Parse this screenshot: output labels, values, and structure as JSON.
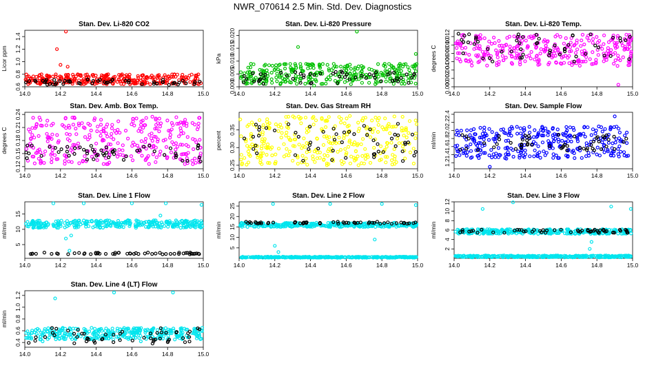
{
  "figure_title": "NWR_070614  2.5 Min. Std. Dev. Diagnostics",
  "chart_data": [
    {
      "type": "scatter",
      "title": "Stan. Dev. Li-820 CO2",
      "ylabel": "Licor ppm",
      "xlim": [
        14.0,
        15.0
      ],
      "ylim": [
        0.6,
        1.5
      ],
      "xticks": [
        "14.0",
        "14.2",
        "14.4",
        "14.6",
        "14.8",
        "15.0"
      ],
      "yticks": [
        "0.6",
        "0.8",
        "1.0",
        "1.2",
        "1.4"
      ],
      "series": [
        {
          "color": "#ff0000",
          "band": [
            0.64,
            0.8
          ],
          "outliers": [
            [
              14.23,
              1.48
            ],
            [
              14.18,
              1.2
            ],
            [
              14.24,
              0.92
            ],
            [
              14.2,
              0.95
            ]
          ]
        },
        {
          "color": "#000000",
          "band": [
            0.63,
            0.72
          ],
          "outliers": []
        }
      ]
    },
    {
      "type": "scatter",
      "title": "Stan. Dev. Li-820 Pressure",
      "ylabel": "kPa",
      "xlim": [
        14.0,
        15.0
      ],
      "ylim": [
        0.0,
        0.022
      ],
      "xticks": [
        "14.0",
        "14.2",
        "14.4",
        "14.6",
        "14.8",
        "15.0"
      ],
      "yticks": [
        "0.000",
        "0.005",
        "0.010",
        "0.015",
        "0.020"
      ],
      "series": [
        {
          "color": "#00c000",
          "band": [
            0.001,
            0.009
          ],
          "outliers": [
            [
              14.66,
              0.0215
            ],
            [
              14.33,
              0.0155
            ],
            [
              14.99,
              0.0128
            ],
            [
              14.42,
              0.0005
            ]
          ]
        },
        {
          "color": "#000000",
          "band": [
            0.001,
            0.006
          ],
          "outliers": []
        }
      ]
    },
    {
      "type": "scatter",
      "title": "Stan. Dev. Li-820 Temp.",
      "ylabel": "degrees C",
      "xlim": [
        14.0,
        15.0
      ],
      "ylim": [
        0.0,
        0.0135
      ],
      "xticks": [
        "14.0",
        "14.2",
        "14.4",
        "14.6",
        "14.8",
        "15.0"
      ],
      "yticks": [
        "0.000",
        "0.002",
        "0.004",
        "0.006",
        "0.008",
        "0.010",
        "0.012"
      ],
      "series": [
        {
          "color": "#ff00ff",
          "band": [
            0.005,
            0.0125
          ],
          "outliers": [
            [
              14.92,
              0.0005
            ]
          ]
        },
        {
          "color": "#000000",
          "band": [
            0.006,
            0.0128
          ],
          "outliers": []
        }
      ]
    },
    {
      "type": "scatter",
      "title": "Stan. Dev. Amb. Box Temp.",
      "ylabel": "degrees C",
      "xlim": [
        14.0,
        15.0
      ],
      "ylim": [
        0.115,
        0.245
      ],
      "xticks": [
        "14.0",
        "14.2",
        "14.4",
        "14.6",
        "14.8",
        "15.0"
      ],
      "yticks": [
        "0.12",
        "0.15",
        "0.18",
        "0.21",
        "0.24"
      ],
      "series": [
        {
          "color": "#ff00ff",
          "band": [
            0.125,
            0.235
          ],
          "outliers": []
        },
        {
          "color": "#000000",
          "band": [
            0.13,
            0.17
          ],
          "outliers": []
        }
      ]
    },
    {
      "type": "scatter",
      "title": "Stan. Dev. Gas Stream RH",
      "ylabel": "percent",
      "xlim": [
        14.0,
        15.0
      ],
      "ylim": [
        0.24,
        0.4
      ],
      "xticks": [
        "14.0",
        "14.2",
        "14.4",
        "14.6",
        "14.8",
        "15.0"
      ],
      "yticks": [
        "0.25",
        "0.30",
        "0.35"
      ],
      "series": [
        {
          "color": "#ffff00",
          "band": [
            0.25,
            0.39
          ],
          "outliers": []
        },
        {
          "color": "#000000",
          "band": [
            0.26,
            0.37
          ],
          "outliers": []
        }
      ]
    },
    {
      "type": "scatter",
      "title": "Stan. Dev. Sample Flow",
      "ylabel": "ml/min",
      "xlim": [
        14.0,
        15.0
      ],
      "ylim": [
        1.05,
        2.45
      ],
      "xticks": [
        "14.0",
        "14.2",
        "14.4",
        "14.6",
        "14.8",
        "15.0"
      ],
      "yticks": [
        "1.2",
        "1.4",
        "1.6",
        "1.8",
        "2.0",
        "2.2",
        "2.4"
      ],
      "series": [
        {
          "color": "#0000ff",
          "band": [
            1.3,
            2.1
          ],
          "outliers": [
            [
              14.2,
              1.1
            ],
            [
              14.9,
              2.35
            ]
          ]
        },
        {
          "color": "#000000",
          "band": [
            1.5,
            1.9
          ],
          "outliers": []
        }
      ]
    },
    {
      "type": "scatter",
      "title": "Stan. Dev. Line 1 Flow",
      "ylabel": "ml/min",
      "xlim": [
        14.0,
        15.0
      ],
      "ylim": [
        0.5,
        19
      ],
      "xticks": [
        "14.0",
        "14.2",
        "14.4",
        "14.6",
        "14.8",
        "15.0"
      ],
      "yticks": [
        "5",
        "10",
        "15"
      ],
      "series": [
        {
          "color": "#00e5ee",
          "band": [
            10.5,
            13
          ],
          "outliers": [
            [
              14.16,
              18.5
            ],
            [
              14.33,
              18.5
            ],
            [
              14.76,
              14.5
            ],
            [
              14.79,
              18.5
            ],
            [
              14.99,
              18
            ],
            [
              14.23,
              7
            ],
            [
              14.26,
              8
            ],
            [
              14.25,
              3
            ],
            [
              14.6,
              18.5
            ]
          ]
        },
        {
          "color": "#000000",
          "band": [
            1.8,
            2.4
          ],
          "outliers": []
        }
      ]
    },
    {
      "type": "scatter",
      "title": "Stan. Dev. Line 2 Flow",
      "ylabel": "ml/min",
      "xlim": [
        14.0,
        15.0
      ],
      "ylim": [
        0.0,
        27
      ],
      "xticks": [
        "14.0",
        "14.2",
        "14.4",
        "14.6",
        "14.8",
        "15.0"
      ],
      "yticks": [
        "5",
        "10",
        "15",
        "20",
        "25"
      ],
      "series": [
        {
          "color": "#00e5ee",
          "band": [
            15,
            17
          ],
          "outliers": [
            [
              14.2,
              6
            ],
            [
              14.22,
              3
            ],
            [
              14.76,
              9
            ],
            [
              14.75,
              17
            ],
            [
              14.19,
              26
            ],
            [
              14.8,
              26
            ],
            [
              14.99,
              25.5
            ],
            [
              14.51,
              26
            ]
          ]
        },
        {
          "color": "#00e5ee",
          "band": [
            0.3,
            0.8
          ],
          "outliers": []
        },
        {
          "color": "#000000",
          "band": [
            16.5,
            17.5
          ],
          "outliers": []
        }
      ]
    },
    {
      "type": "scatter",
      "title": "Stan. Dev. Line 3 Flow",
      "ylabel": "ml/min",
      "xlim": [
        14.0,
        15.0
      ],
      "ylim": [
        0.0,
        12
      ],
      "xticks": [
        "14.0",
        "14.2",
        "14.4",
        "14.6",
        "14.8",
        "15.0"
      ],
      "yticks": [
        "2",
        "4",
        "6",
        "8",
        "10",
        "12"
      ],
      "series": [
        {
          "color": "#00e5ee",
          "band": [
            5.2,
            6.2
          ],
          "outliers": [
            [
              14.33,
              11.9
            ],
            [
              14.16,
              10.5
            ],
            [
              14.88,
              11
            ],
            [
              14.99,
              10.5
            ],
            [
              14.76,
              2
            ],
            [
              14.77,
              3.5
            ]
          ]
        },
        {
          "color": "#00e5ee",
          "band": [
            0.2,
            0.6
          ],
          "outliers": []
        },
        {
          "color": "#000000",
          "band": [
            5.4,
            6.1
          ],
          "outliers": []
        }
      ]
    },
    {
      "type": "scatter",
      "title": "Stan. Dev. Line 4 (LT) Flow",
      "ylabel": "ml/min",
      "xlim": [
        14.0,
        15.0
      ],
      "ylim": [
        0.32,
        1.28
      ],
      "xticks": [
        "14.0",
        "14.2",
        "14.4",
        "14.6",
        "14.8",
        "15.0"
      ],
      "yticks": [
        "0.4",
        "0.6",
        "0.8",
        "1.0",
        "1.2"
      ],
      "series": [
        {
          "color": "#00e5ee",
          "band": [
            0.45,
            0.65
          ],
          "outliers": [
            [
              14.5,
              1.25
            ],
            [
              14.83,
              1.25
            ],
            [
              14.17,
              1.15
            ],
            [
              14.1,
              0.42
            ],
            [
              14.65,
              0.42
            ]
          ]
        },
        {
          "color": "#000000",
          "band": [
            0.38,
            0.65
          ],
          "outliers": []
        }
      ]
    }
  ]
}
